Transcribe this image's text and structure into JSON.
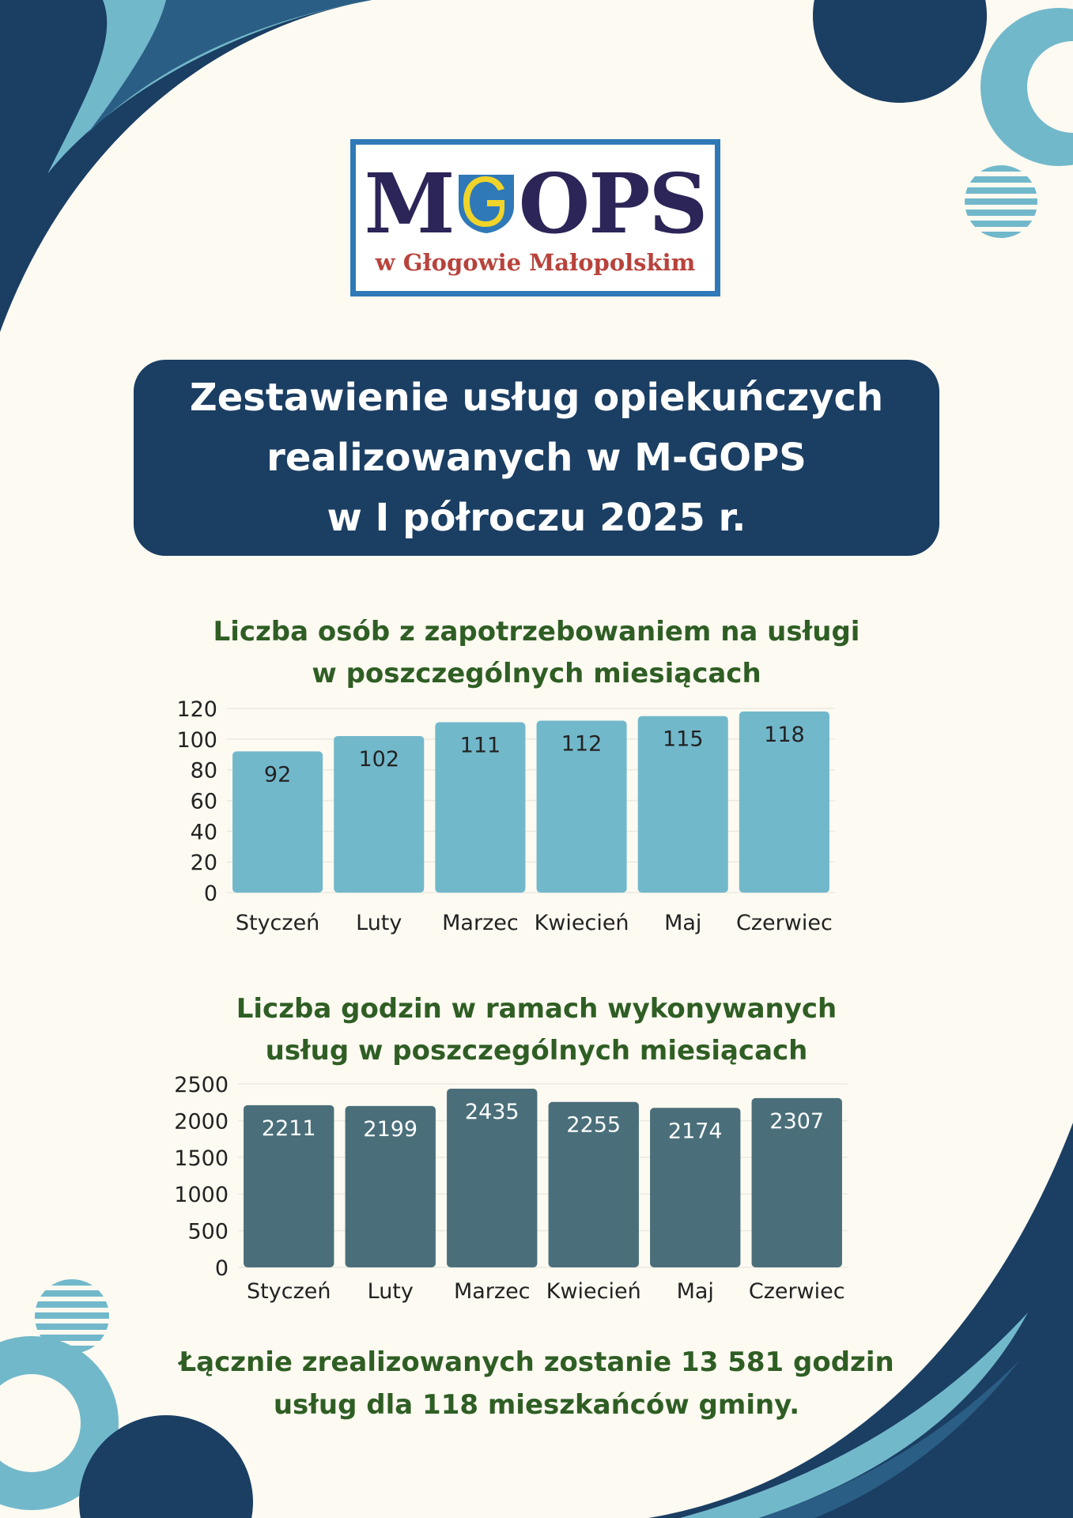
{
  "logo": {
    "wordmark": "MGOPS",
    "subtitle": "w Głogowie Małopolskim"
  },
  "page_title": "Zestawienie usług opiekuńczych\nrealizowanych w M-GOPS\nw I półroczu 2025 r.",
  "colors": {
    "background": "#fcfaf1",
    "navy": "#1b3e63",
    "light_blue": "#72b8cb",
    "slate": "#4a6f7a",
    "green_text": "#2f5e24"
  },
  "chart_data": [
    {
      "type": "bar",
      "title": "Liczba osób z zapotrzebowaniem na usługi\nw poszczególnych miesiącach",
      "categories": [
        "Styczeń",
        "Luty",
        "Marzec",
        "Kwiecień",
        "Maj",
        "Czerwiec"
      ],
      "values": [
        92,
        102,
        111,
        112,
        115,
        118
      ],
      "ylim": [
        0,
        120
      ],
      "yticks": [
        0,
        20,
        40,
        60,
        80,
        100,
        120
      ],
      "grid": true,
      "bar_color": "#72b8cb",
      "label_color": "#222222"
    },
    {
      "type": "bar",
      "title": "Liczba godzin w ramach wykonywanych\nusług w poszczególnych miesiącach",
      "categories": [
        "Styczeń",
        "Luty",
        "Marzec",
        "Kwiecień",
        "Maj",
        "Czerwiec"
      ],
      "values": [
        2211,
        2199,
        2435,
        2255,
        2174,
        2307
      ],
      "ylim": [
        0,
        2500
      ],
      "yticks": [
        0,
        500,
        1000,
        1500,
        2000,
        2500
      ],
      "grid": true,
      "bar_color": "#4a6f7a",
      "label_color": "#ffffff"
    }
  ],
  "summary": "Łącznie zrealizowanych zostanie 13 581 godzin\nusług dla 118 mieszkańców gminy."
}
